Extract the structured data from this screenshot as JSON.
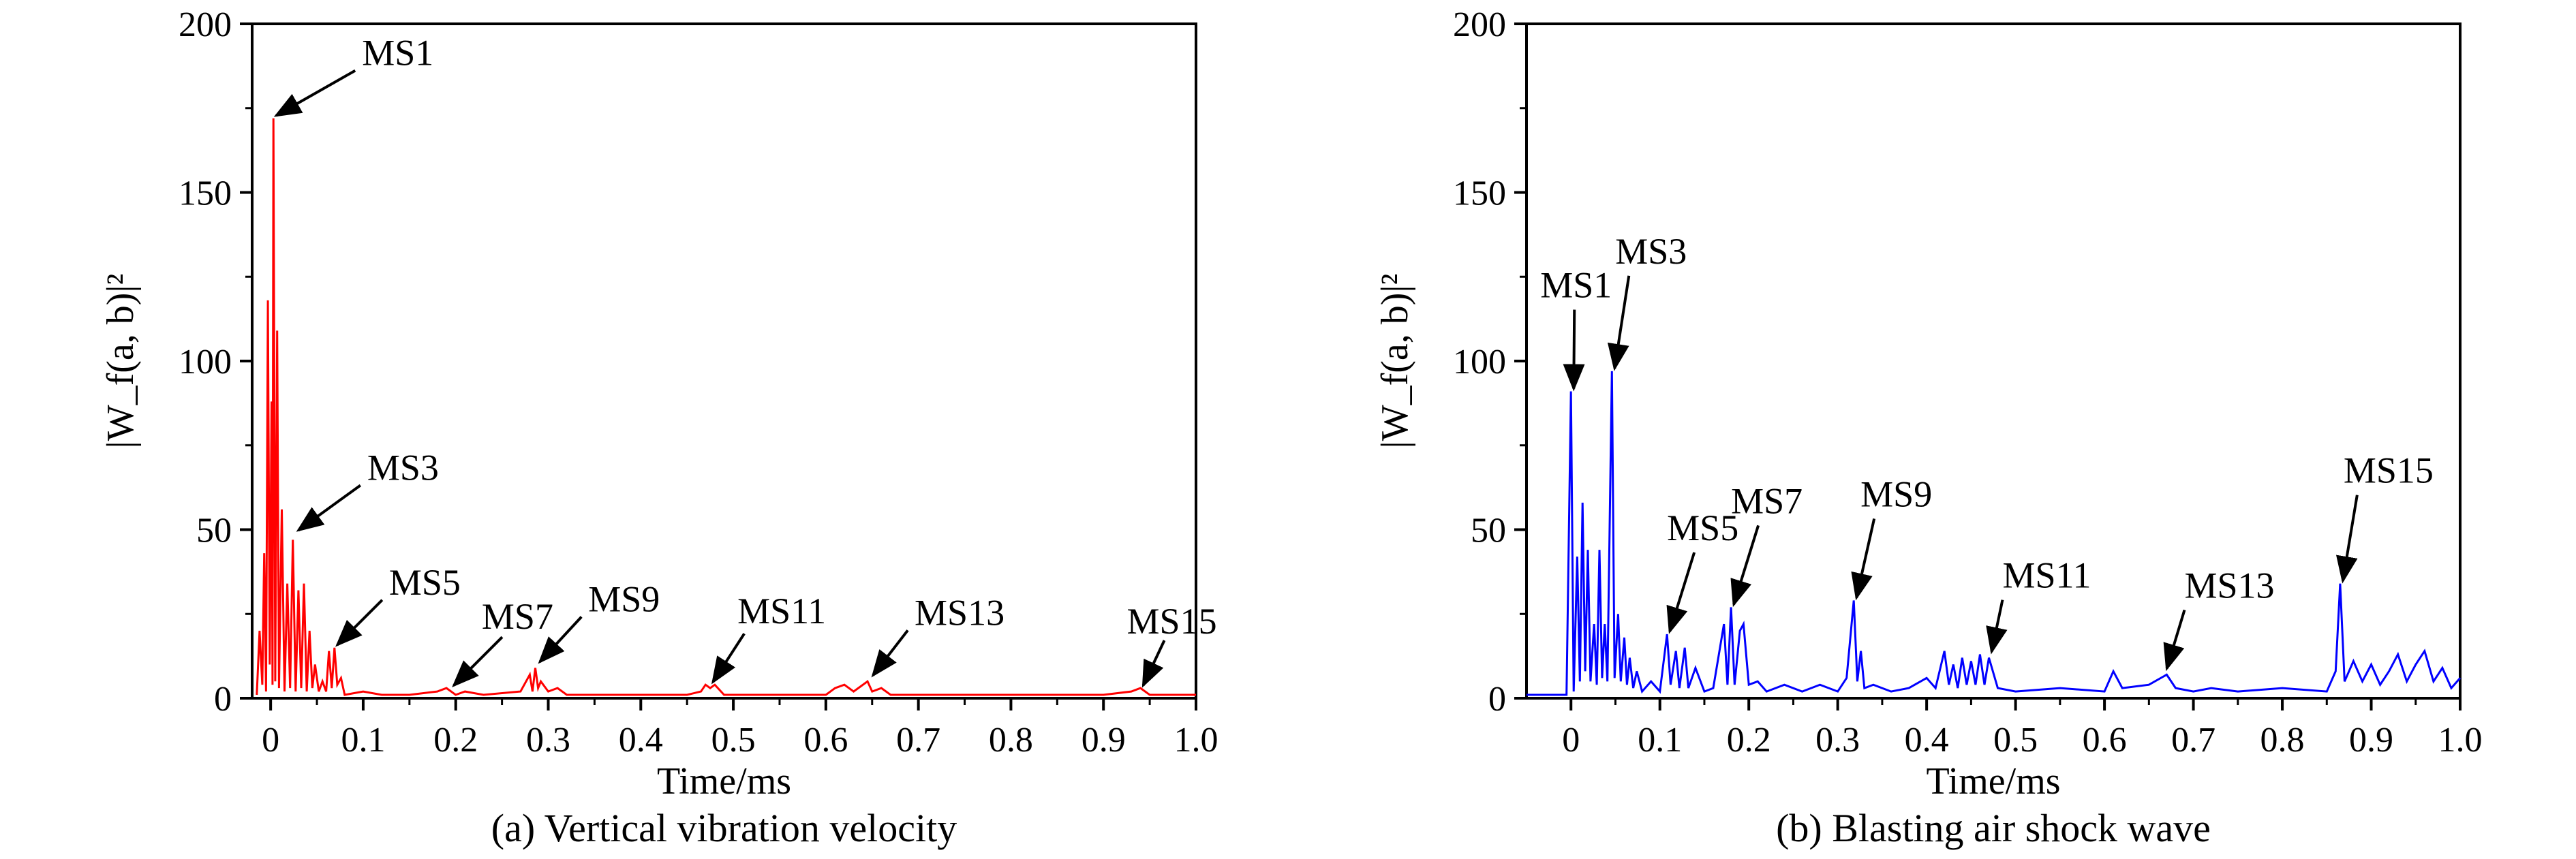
{
  "chart_data": [
    {
      "type": "line",
      "caption": "(a) Vertical vibration velocity",
      "xlabel": "Time/ms",
      "ylabel": "|W_f(a, b)|²",
      "xlim": [
        -0.02,
        1.0
      ],
      "ylim": [
        0,
        200
      ],
      "xticks": [
        0,
        0.1,
        0.2,
        0.3,
        0.4,
        0.5,
        0.6,
        0.7,
        0.8,
        0.9,
        1.0
      ],
      "xtick_labels": [
        "0",
        "0.1",
        "0.2",
        "0.3",
        "0.4",
        "0.5",
        "0.6",
        "0.7",
        "0.8",
        "0.9",
        "1.0"
      ],
      "yticks": [
        0,
        50,
        100,
        150,
        200
      ],
      "ytick_labels": [
        "0",
        "50",
        "100",
        "150",
        "200"
      ],
      "series_color": "#ff0000",
      "series": [
        {
          "values": [
            [
              -0.015,
              1
            ],
            [
              -0.012,
              20
            ],
            [
              -0.009,
              4
            ],
            [
              -0.007,
              43
            ],
            [
              -0.005,
              2
            ],
            [
              -0.003,
              118
            ],
            [
              -0.001,
              10
            ],
            [
              0.001,
              88
            ],
            [
              0.002,
              4
            ],
            [
              0.003,
              172
            ],
            [
              0.005,
              5
            ],
            [
              0.007,
              109
            ],
            [
              0.009,
              3
            ],
            [
              0.012,
              56
            ],
            [
              0.015,
              2
            ],
            [
              0.018,
              34
            ],
            [
              0.021,
              3
            ],
            [
              0.024,
              47
            ],
            [
              0.027,
              2
            ],
            [
              0.03,
              32
            ],
            [
              0.033,
              3
            ],
            [
              0.036,
              34
            ],
            [
              0.039,
              2
            ],
            [
              0.042,
              20
            ],
            [
              0.045,
              3
            ],
            [
              0.048,
              10
            ],
            [
              0.052,
              2
            ],
            [
              0.056,
              5
            ],
            [
              0.06,
              2
            ],
            [
              0.063,
              14
            ],
            [
              0.066,
              3
            ],
            [
              0.069,
              15
            ],
            [
              0.072,
              4
            ],
            [
              0.076,
              6
            ],
            [
              0.08,
              1
            ],
            [
              0.1,
              2
            ],
            [
              0.12,
              1
            ],
            [
              0.15,
              1
            ],
            [
              0.18,
              2
            ],
            [
              0.19,
              3
            ],
            [
              0.2,
              1
            ],
            [
              0.21,
              2
            ],
            [
              0.23,
              1
            ],
            [
              0.27,
              2
            ],
            [
              0.28,
              7
            ],
            [
              0.283,
              2
            ],
            [
              0.286,
              9
            ],
            [
              0.289,
              3
            ],
            [
              0.292,
              5
            ],
            [
              0.3,
              2
            ],
            [
              0.31,
              3
            ],
            [
              0.32,
              1
            ],
            [
              0.35,
              1
            ],
            [
              0.4,
              1
            ],
            [
              0.45,
              1
            ],
            [
              0.465,
              2
            ],
            [
              0.47,
              4
            ],
            [
              0.475,
              3
            ],
            [
              0.48,
              4
            ],
            [
              0.49,
              1
            ],
            [
              0.55,
              1
            ],
            [
              0.6,
              1
            ],
            [
              0.61,
              3
            ],
            [
              0.62,
              4
            ],
            [
              0.63,
              2
            ],
            [
              0.645,
              5
            ],
            [
              0.65,
              2
            ],
            [
              0.66,
              3
            ],
            [
              0.67,
              1
            ],
            [
              0.7,
              1
            ],
            [
              0.8,
              1
            ],
            [
              0.9,
              1
            ],
            [
              0.93,
              2
            ],
            [
              0.94,
              3
            ],
            [
              0.95,
              1
            ],
            [
              1.0,
              1
            ]
          ]
        }
      ],
      "annotations": [
        {
          "text": "MS1",
          "x": 0.003,
          "y": 172
        },
        {
          "text": "MS3",
          "x": 0.027,
          "y": 49
        },
        {
          "text": "MS5",
          "x": 0.069,
          "y": 15
        },
        {
          "text": "MS7",
          "x": 0.195,
          "y": 3
        },
        {
          "text": "MS9",
          "x": 0.288,
          "y": 10
        },
        {
          "text": "MS11",
          "x": 0.475,
          "y": 4
        },
        {
          "text": "MS13",
          "x": 0.648,
          "y": 6
        },
        {
          "text": "MS15",
          "x": 0.94,
          "y": 3
        }
      ]
    },
    {
      "type": "line",
      "caption": "(b) Blasting air shock wave",
      "xlabel": "Time/ms",
      "ylabel": "|W_f(a, b)|²",
      "xlim": [
        -0.05,
        1.0
      ],
      "ylim": [
        0,
        200
      ],
      "xticks": [
        0,
        0.1,
        0.2,
        0.3,
        0.4,
        0.5,
        0.6,
        0.7,
        0.8,
        0.9,
        1.0
      ],
      "xtick_labels": [
        "0",
        "0.1",
        "0.2",
        "0.3",
        "0.4",
        "0.5",
        "0.6",
        "0.7",
        "0.8",
        "0.9",
        "1.0"
      ],
      "yticks": [
        0,
        50,
        100,
        150,
        200
      ],
      "ytick_labels": [
        "0",
        "50",
        "100",
        "150",
        "200"
      ],
      "series_color": "#0000ff",
      "series": [
        {
          "values": [
            [
              -0.05,
              1
            ],
            [
              -0.005,
              1
            ],
            [
              0.0,
              91
            ],
            [
              0.003,
              2
            ],
            [
              0.007,
              42
            ],
            [
              0.01,
              5
            ],
            [
              0.013,
              58
            ],
            [
              0.016,
              8
            ],
            [
              0.019,
              44
            ],
            [
              0.022,
              5
            ],
            [
              0.026,
              22
            ],
            [
              0.029,
              4
            ],
            [
              0.032,
              44
            ],
            [
              0.035,
              6
            ],
            [
              0.038,
              22
            ],
            [
              0.041,
              5
            ],
            [
              0.046,
              97
            ],
            [
              0.049,
              6
            ],
            [
              0.053,
              25
            ],
            [
              0.056,
              5
            ],
            [
              0.06,
              18
            ],
            [
              0.063,
              4
            ],
            [
              0.066,
              12
            ],
            [
              0.07,
              3
            ],
            [
              0.074,
              8
            ],
            [
              0.08,
              2
            ],
            [
              0.09,
              5
            ],
            [
              0.1,
              2
            ],
            [
              0.108,
              19
            ],
            [
              0.112,
              4
            ],
            [
              0.118,
              14
            ],
            [
              0.122,
              3
            ],
            [
              0.128,
              15
            ],
            [
              0.132,
              3
            ],
            [
              0.14,
              9
            ],
            [
              0.15,
              2
            ],
            [
              0.16,
              3
            ],
            [
              0.172,
              22
            ],
            [
              0.176,
              4
            ],
            [
              0.18,
              27
            ],
            [
              0.184,
              4
            ],
            [
              0.19,
              20
            ],
            [
              0.194,
              22
            ],
            [
              0.2,
              4
            ],
            [
              0.21,
              5
            ],
            [
              0.22,
              2
            ],
            [
              0.24,
              4
            ],
            [
              0.26,
              2
            ],
            [
              0.28,
              4
            ],
            [
              0.3,
              2
            ],
            [
              0.31,
              6
            ],
            [
              0.318,
              29
            ],
            [
              0.322,
              5
            ],
            [
              0.326,
              14
            ],
            [
              0.33,
              3
            ],
            [
              0.34,
              4
            ],
            [
              0.36,
              2
            ],
            [
              0.38,
              3
            ],
            [
              0.4,
              6
            ],
            [
              0.41,
              3
            ],
            [
              0.42,
              14
            ],
            [
              0.425,
              4
            ],
            [
              0.43,
              10
            ],
            [
              0.435,
              3
            ],
            [
              0.44,
              12
            ],
            [
              0.445,
              4
            ],
            [
              0.45,
              11
            ],
            [
              0.455,
              4
            ],
            [
              0.46,
              13
            ],
            [
              0.465,
              4
            ],
            [
              0.47,
              12
            ],
            [
              0.48,
              3
            ],
            [
              0.5,
              2
            ],
            [
              0.55,
              3
            ],
            [
              0.6,
              2
            ],
            [
              0.61,
              8
            ],
            [
              0.62,
              3
            ],
            [
              0.65,
              4
            ],
            [
              0.67,
              7
            ],
            [
              0.68,
              3
            ],
            [
              0.7,
              2
            ],
            [
              0.72,
              3
            ],
            [
              0.75,
              2
            ],
            [
              0.8,
              3
            ],
            [
              0.85,
              2
            ],
            [
              0.86,
              8
            ],
            [
              0.865,
              34
            ],
            [
              0.87,
              5
            ],
            [
              0.88,
              11
            ],
            [
              0.89,
              5
            ],
            [
              0.9,
              10
            ],
            [
              0.91,
              4
            ],
            [
              0.92,
              8
            ],
            [
              0.93,
              13
            ],
            [
              0.94,
              5
            ],
            [
              0.95,
              10
            ],
            [
              0.96,
              14
            ],
            [
              0.97,
              5
            ],
            [
              0.98,
              9
            ],
            [
              0.99,
              3
            ],
            [
              1.0,
              6
            ]
          ]
        }
      ],
      "annotations": [
        {
          "text": "MS1",
          "x": 0.0,
          "y": 91
        },
        {
          "text": "MS3",
          "x": 0.046,
          "y": 97
        },
        {
          "text": "MS5",
          "x": 0.108,
          "y": 19
        },
        {
          "text": "MS7",
          "x": 0.18,
          "y": 27
        },
        {
          "text": "MS9",
          "x": 0.318,
          "y": 29
        },
        {
          "text": "MS11",
          "x": 0.47,
          "y": 13
        },
        {
          "text": "MS13",
          "x": 0.667,
          "y": 8
        },
        {
          "text": "MS15",
          "x": 0.865,
          "y": 34
        }
      ]
    }
  ]
}
